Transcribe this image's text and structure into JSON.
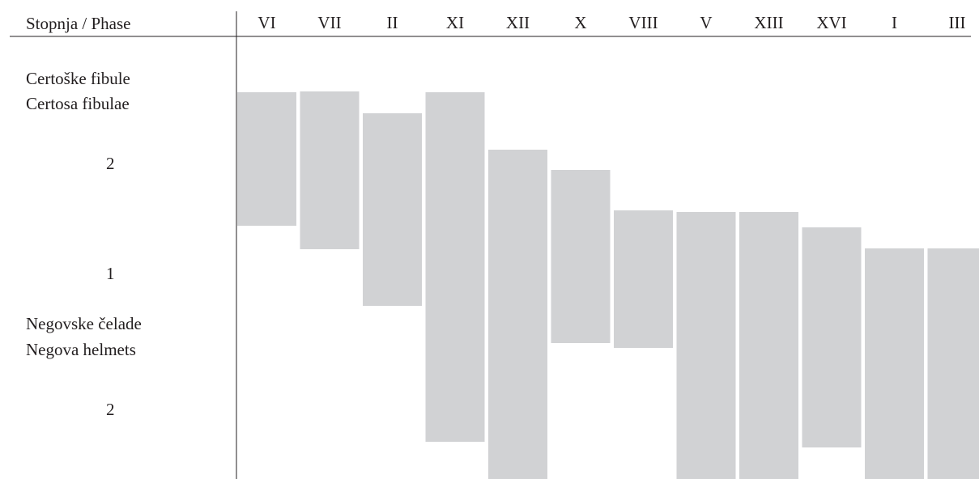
{
  "header": {
    "stub_label": "Stopnja / Phase"
  },
  "row_labels": {
    "certosa_sl": "Certoške fibule",
    "certosa_en": "Certosa fibulae",
    "certosa_level": "2",
    "middle_level": "1",
    "negova_sl": "Negovske čelade",
    "negova_en": "Negova helmets",
    "negova_level": "2"
  },
  "colors": {
    "bar": "#d1d2d4",
    "text": "#231f20",
    "rule": "#231f20"
  },
  "chart_data": {
    "type": "bar",
    "orientation": "floating-range",
    "categories": [
      "VI",
      "VII",
      "II",
      "XI",
      "XII",
      "X",
      "VIII",
      "V",
      "XIII",
      "XVI",
      "I",
      "III"
    ],
    "series": [
      {
        "ranges": [
          [
            114,
            279
          ],
          [
            113,
            308
          ],
          [
            140,
            378
          ],
          [
            114,
            546
          ],
          [
            185,
            600
          ],
          [
            210,
            424
          ],
          [
            260,
            430
          ],
          [
            262,
            600
          ],
          [
            262,
            600
          ],
          [
            281,
            553
          ],
          [
            307,
            600
          ],
          [
            307,
            600
          ]
        ]
      }
    ],
    "y_scale_note": "",
    "grid": false,
    "legend": "none"
  }
}
